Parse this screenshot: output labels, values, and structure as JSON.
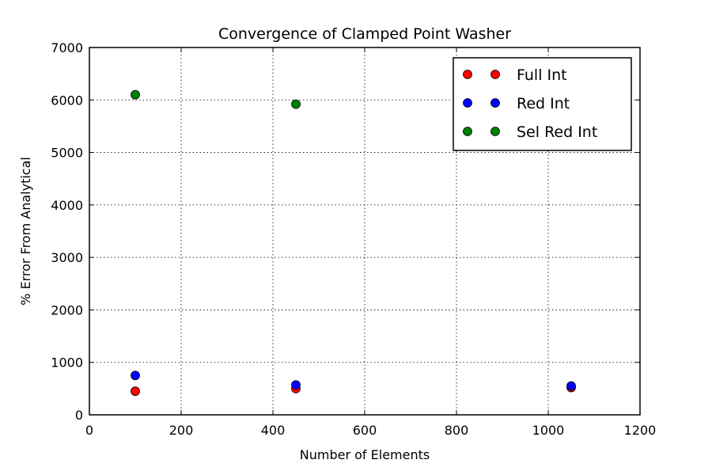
{
  "chart_data": {
    "type": "scatter",
    "title": "Convergence of Clamped Point Washer",
    "xlabel": "Number of Elements",
    "ylabel": "% Error From Analytical",
    "xlim": [
      0,
      1200
    ],
    "ylim": [
      0,
      7000
    ],
    "xticks": [
      0,
      200,
      400,
      600,
      800,
      1000,
      1200
    ],
    "yticks": [
      0,
      1000,
      2000,
      3000,
      4000,
      5000,
      6000,
      7000
    ],
    "grid": true,
    "legend_position": "top-right",
    "series": [
      {
        "name": "Full Int",
        "color": "#ff0000",
        "x": [
          100,
          450,
          1050
        ],
        "y": [
          450,
          500,
          520
        ]
      },
      {
        "name": "Red Int",
        "color": "#0000ff",
        "x": [
          100,
          450,
          1050
        ],
        "y": [
          750,
          570,
          550
        ]
      },
      {
        "name": "Sel Red Int",
        "color": "#008000",
        "x": [
          100,
          450
        ],
        "y": [
          6100,
          5920
        ]
      }
    ]
  }
}
